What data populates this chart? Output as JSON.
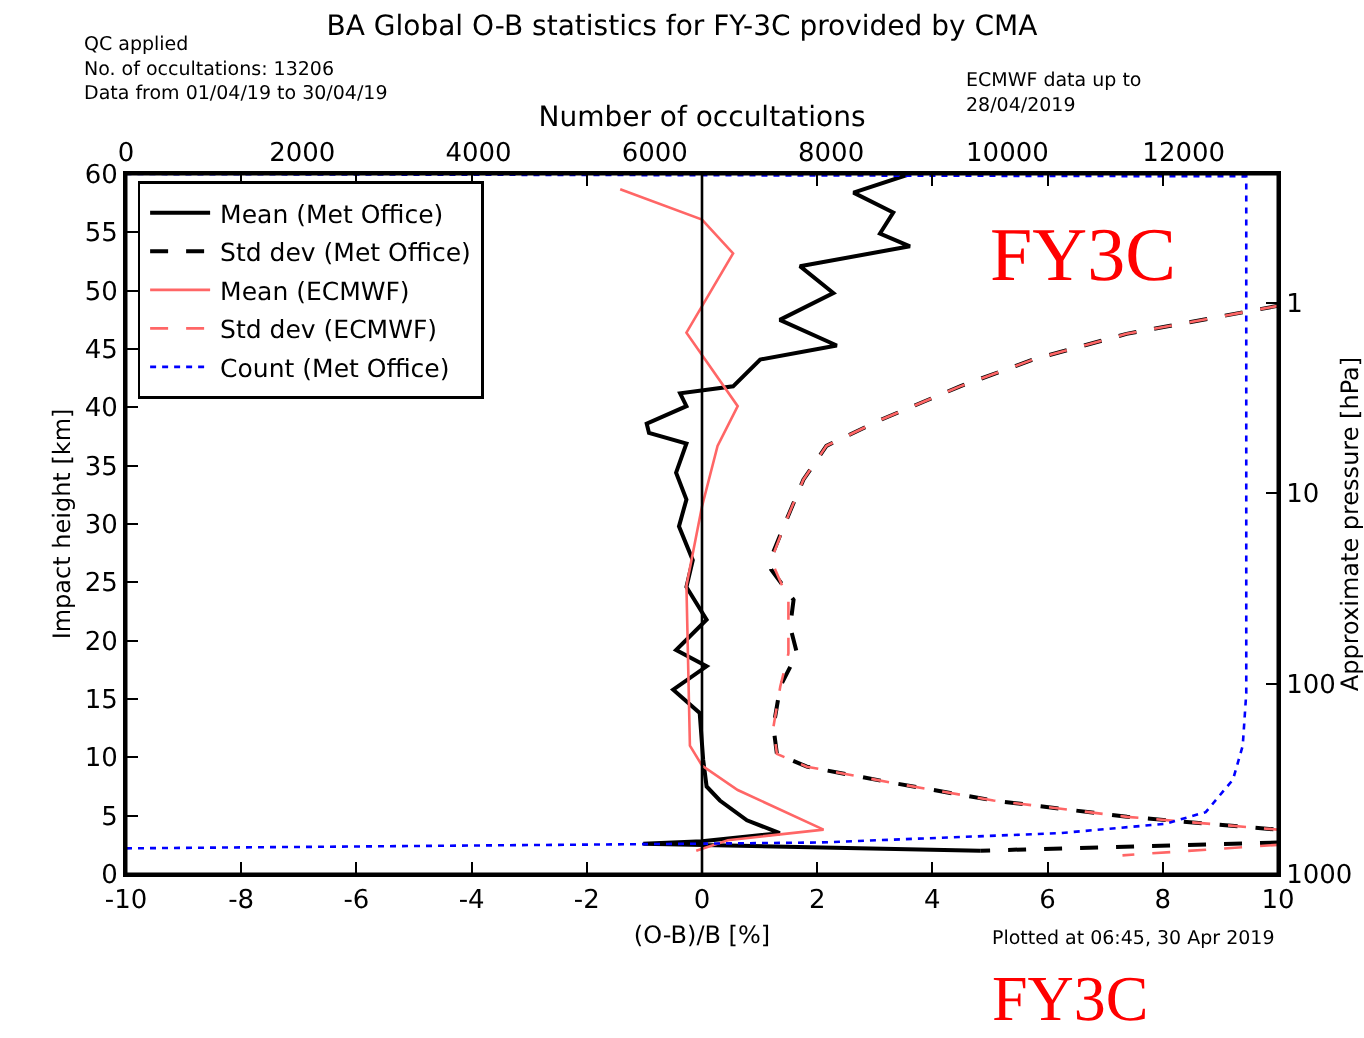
{
  "chart_data": {
    "type": "line",
    "title": "BA Global O-B statistics for FY-3C provided by CMA",
    "xlabel": "(O-B)/B [%]",
    "x2label": "Number of occultations",
    "ylabel": "Impact height [km]",
    "y2label": "Approximate pressure [hPa]",
    "xlim": [
      -10,
      10
    ],
    "xticks": [
      -10,
      -8,
      -6,
      -4,
      -2,
      0,
      2,
      4,
      6,
      8,
      10
    ],
    "x2lim": [
      0,
      13070
    ],
    "x2ticks": [
      0,
      2000,
      4000,
      6000,
      8000,
      10000,
      12000
    ],
    "ylim": [
      0,
      60
    ],
    "yticks": [
      0,
      5,
      10,
      15,
      20,
      25,
      30,
      35,
      40,
      45,
      50,
      55,
      60
    ],
    "y2lim": [
      1000,
      0.21
    ],
    "y2ticks": [
      1,
      10,
      100,
      1000
    ],
    "log": "y2",
    "grid": false,
    "legend": "top left",
    "marker": "none",
    "ref_lines": [
      {
        "axis": "x",
        "value": 0,
        "color": "#000000"
      }
    ],
    "annotations": [
      "QC applied\nNo. of occultations: 13206\nData from 01/04/19 to 30/04/19",
      "ECMWF data up to\n28/04/2019",
      "Plotted at 06:45, 30 Apr 2019",
      "FY3C",
      "FY3C"
    ],
    "series": [
      {
        "name": "Mean (Met Office)",
        "color": "#000000",
        "line_style": "solid",
        "x": [
          3.61,
          2.63,
          3.32,
          3.09,
          3.61,
          1.7,
          2.28,
          1.35,
          2.34,
          1.01,
          0.54,
          -0.38,
          -0.27,
          -0.96,
          -0.92,
          -0.27,
          -0.45,
          -0.27,
          -0.4,
          -0.16,
          -0.27,
          0.08,
          -0.45,
          0.08,
          -0.5,
          -0.04,
          0.02,
          0.08,
          0.31,
          0.78,
          1.35,
          0,
          -1.02,
          4.83
        ],
        "values": [
          60,
          58.4,
          56.7,
          54.9,
          53.8,
          52.1,
          49.8,
          47.5,
          45.3,
          44.1,
          41.8,
          41.2,
          40.1,
          38.6,
          37.8,
          36.9,
          34.4,
          32.1,
          29.8,
          26.9,
          24.6,
          21.8,
          19.2,
          17.8,
          15.8,
          13.8,
          9.8,
          7.5,
          6.3,
          4.6,
          3.5,
          2.8,
          2.6,
          2.0
        ]
      },
      {
        "name": "Std dev (Met Office)",
        "color": "#000000",
        "line_style": "dashed",
        "x": [
          10,
          7.37,
          5.75,
          4.48,
          3.09,
          2.16,
          1.76,
          1.47,
          1.18,
          1.2,
          1.59,
          1.53,
          1.65,
          1.36,
          1.24,
          1.3,
          1.82,
          3.32,
          5.06,
          7.38,
          10,
          null,
          10,
          4.83
        ],
        "values": [
          48.7,
          46.3,
          44.1,
          41.8,
          38.9,
          36.7,
          33.8,
          30.4,
          26.9,
          26.1,
          23.5,
          21.2,
          18.9,
          16.1,
          12.6,
          10.3,
          9.2,
          7.8,
          6.3,
          4.9,
          3.8,
          null,
          2.7,
          2.0
        ]
      },
      {
        "name": "Mean (ECMWF)",
        "color": "#ff6666",
        "line_style": "solid",
        "x": [
          null,
          -1.42,
          0,
          0.54,
          -0.27,
          0.62,
          0.27,
          0,
          -0.27,
          -0.21,
          0,
          0.62,
          2.11,
          0.45,
          -0.1
        ],
        "values": [
          null,
          58.7,
          56.1,
          53.2,
          46.4,
          40.1,
          36.7,
          31.5,
          24.7,
          11,
          9.3,
          7.2,
          3.8,
          2.9,
          2.0
        ]
      },
      {
        "name": "Std dev (ECMWF)",
        "color": "#ff6666",
        "line_style": "dashed",
        "x": [
          10,
          7.37,
          5.75,
          4.48,
          3.09,
          2.16,
          1.76,
          1.47,
          1.2,
          1.5,
          1.5,
          1.5,
          1.36,
          1.24,
          1.3,
          1.82,
          3.32,
          5.06,
          7.38,
          10,
          null,
          10,
          7.3
        ],
        "values": [
          48.7,
          46.3,
          44.1,
          41.8,
          38.9,
          36.7,
          33.8,
          30.4,
          26.9,
          23.5,
          21.2,
          18.9,
          16.1,
          12.6,
          10.3,
          9.2,
          7.8,
          6.3,
          4.9,
          3.8,
          null,
          2.5,
          1.6
        ]
      },
      {
        "name": "Count (Met Office)",
        "color": "#0000ff",
        "line_style": "dotted",
        "axis": "x2",
        "x": [
          0,
          6530,
          7870,
          10590,
          11790,
          12250,
          12560,
          12670,
          12710,
          12710,
          0
        ],
        "values": [
          2.2,
          2.6,
          2.7,
          3.5,
          4.3,
          5.3,
          8.1,
          11,
          15.5,
          59.8,
          60
        ]
      }
    ]
  }
}
